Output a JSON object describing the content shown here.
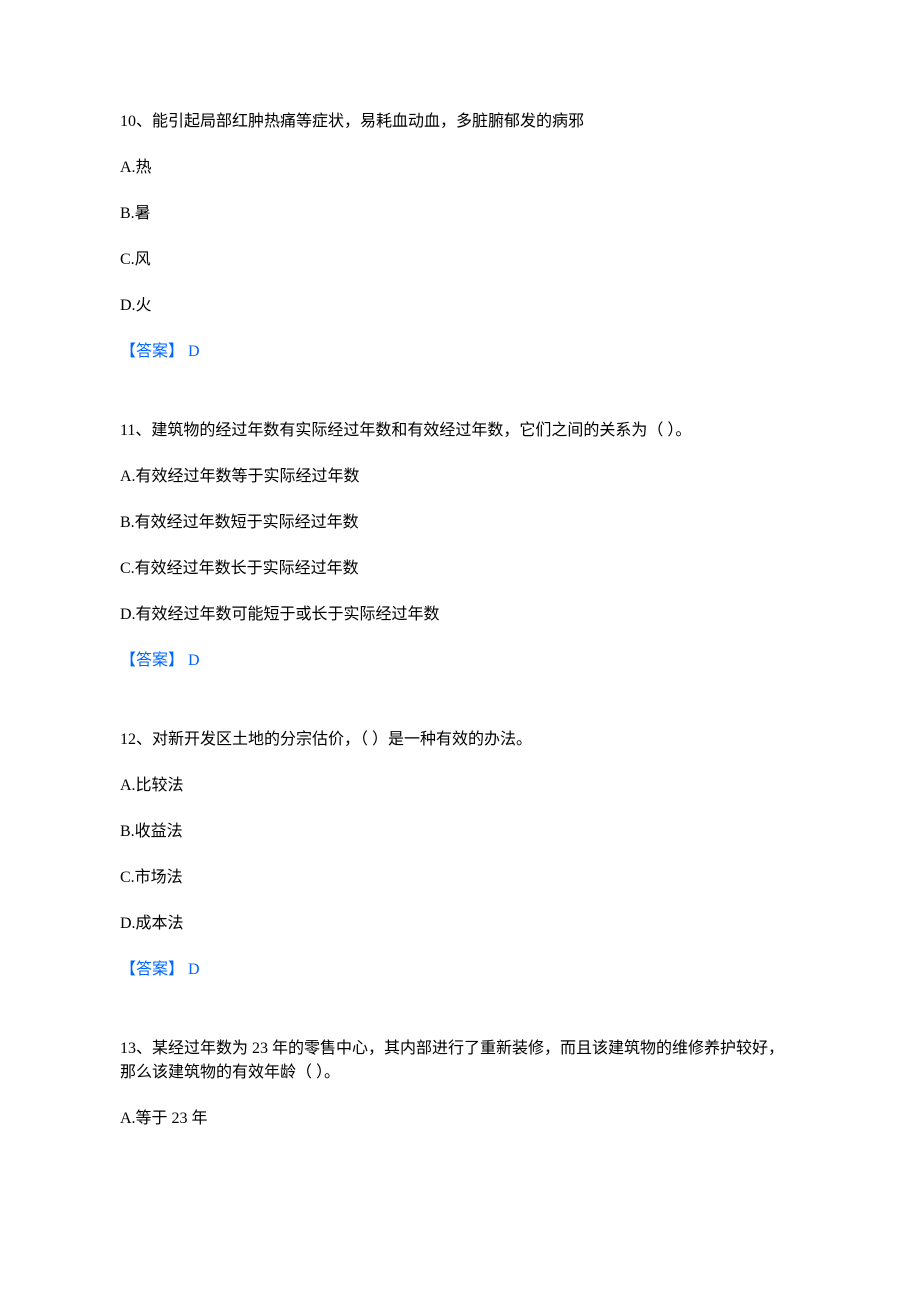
{
  "colors": {
    "text_color": "#000000",
    "answer_color": "#0066ff",
    "background": "#ffffff"
  },
  "typography": {
    "font_family": "SimSun",
    "font_size_pt": 12,
    "line_height": 1.5
  },
  "questions": [
    {
      "number": "10、",
      "text": "能引起局部红肿热痛等症状，易耗血动血，多脏腑郁发的病邪",
      "options": {
        "A": "A.热",
        "B": "B.暑",
        "C": "C.风",
        "D": "D.火"
      },
      "answer_label": "【答案】 ",
      "answer_value": "D"
    },
    {
      "number": "11、",
      "text": "建筑物的经过年数有实际经过年数和有效经过年数，它们之间的关系为（ ）。",
      "options": {
        "A": "A.有效经过年数等于实际经过年数",
        "B": "B.有效经过年数短于实际经过年数",
        "C": "C.有效经过年数长于实际经过年数",
        "D": "D.有效经过年数可能短于或长于实际经过年数"
      },
      "answer_label": "【答案】 ",
      "answer_value": "D"
    },
    {
      "number": "12、",
      "text": "对新开发区土地的分宗估价，（ ）是一种有效的办法。",
      "options": {
        "A": "A.比较法",
        "B": "B.收益法",
        "C": "C.市场法",
        "D": "D.成本法"
      },
      "answer_label": "【答案】 ",
      "answer_value": "D"
    },
    {
      "number": "13、",
      "text": "某经过年数为 23 年的零售中心，其内部进行了重新装修，而且该建筑物的维修养护较好，那么该建筑物的有效年龄（ ）。",
      "options": {
        "A": "A.等于 23 年"
      },
      "answer_label": null,
      "answer_value": null
    }
  ]
}
